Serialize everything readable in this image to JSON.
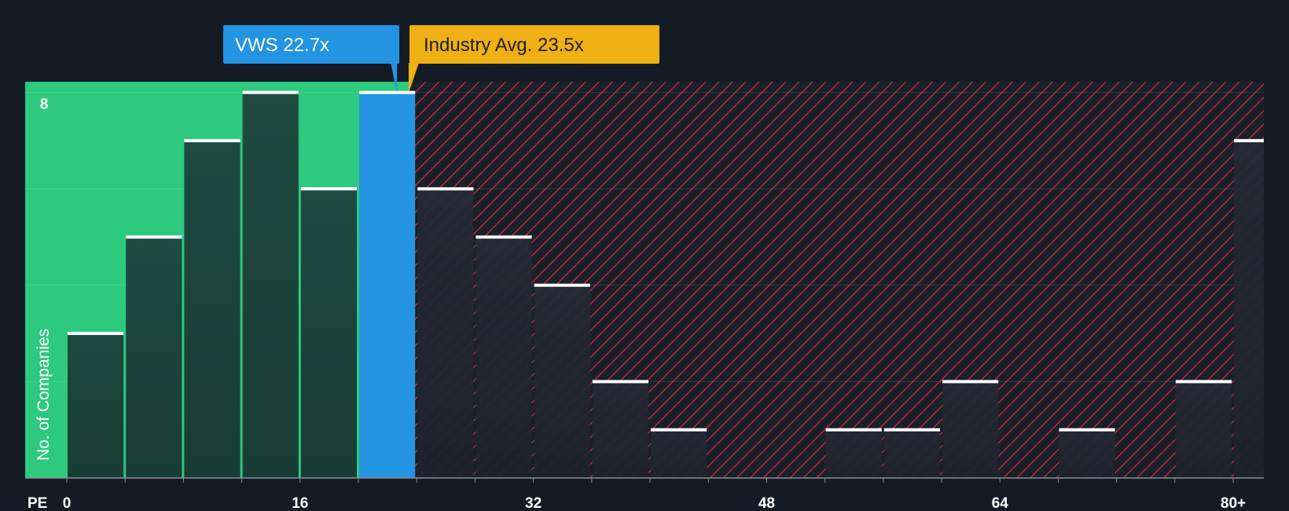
{
  "chart_data": {
    "type": "bar",
    "xlabel": "PE",
    "ylabel": "No. of Companies",
    "bin_width": 4,
    "xlim": [
      -3,
      82
    ],
    "ylim": [
      0,
      8.3
    ],
    "x_ticks": [
      {
        "value": 0,
        "label": "0"
      },
      {
        "value": 16,
        "label": "16"
      },
      {
        "value": 32,
        "label": "32"
      },
      {
        "value": 48,
        "label": "48"
      },
      {
        "value": 64,
        "label": "64"
      },
      {
        "value": 80,
        "label": "80+"
      }
    ],
    "y_ticks": [
      2,
      4,
      6,
      8
    ],
    "y_tick_labels": [
      {
        "value": 8,
        "label": "8"
      }
    ],
    "bins": [
      {
        "start": 0,
        "count": 3
      },
      {
        "start": 4,
        "count": 5
      },
      {
        "start": 8,
        "count": 7
      },
      {
        "start": 12,
        "count": 8
      },
      {
        "start": 16,
        "count": 6
      },
      {
        "start": 20,
        "count": 8,
        "highlight": true
      },
      {
        "start": 24,
        "count": 6
      },
      {
        "start": 28,
        "count": 5
      },
      {
        "start": 32,
        "count": 4
      },
      {
        "start": 36,
        "count": 2
      },
      {
        "start": 40,
        "count": 1
      },
      {
        "start": 44,
        "count": 0
      },
      {
        "start": 48,
        "count": 0
      },
      {
        "start": 52,
        "count": 1
      },
      {
        "start": 56,
        "count": 1
      },
      {
        "start": 60,
        "count": 2
      },
      {
        "start": 64,
        "count": 0
      },
      {
        "start": 68,
        "count": 1
      },
      {
        "start": 72,
        "count": 0
      },
      {
        "start": 76,
        "count": 2
      },
      {
        "start": 80,
        "count": 7
      }
    ],
    "company": {
      "label": "VWS 22.7x",
      "value": 22.7
    },
    "industry": {
      "label": "Industry Avg. 23.5x",
      "value": 23.5
    },
    "colors": {
      "background": "#151b24",
      "undervalued_zone": "#2dc97e",
      "overvalued_hatch": "#d8343b",
      "bar_in_green": "#1e4a40",
      "bar_in_red": "#262a36",
      "highlight_bar": "#2394e1",
      "bar_cap": "#ffffff",
      "company_callout": "#2394e1",
      "industry_callout": "#eeb012",
      "industry_text": "#1e1e1e"
    }
  }
}
